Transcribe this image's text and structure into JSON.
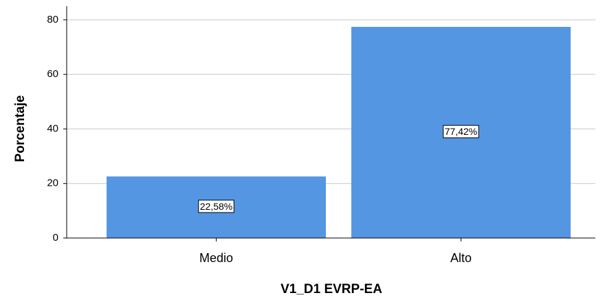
{
  "chart_data": {
    "type": "bar",
    "categories": [
      "Medio",
      "Alto"
    ],
    "values": [
      22.58,
      77.42
    ],
    "value_labels": [
      "22,58%",
      "77,42%"
    ],
    "color": "#5596e3",
    "ylim": [
      0,
      85
    ],
    "yticks": [
      0,
      20,
      40,
      60,
      80
    ],
    "grid": true,
    "y_label": "Porcentaje",
    "x_label": "V1_D1 EVRP-EA"
  }
}
